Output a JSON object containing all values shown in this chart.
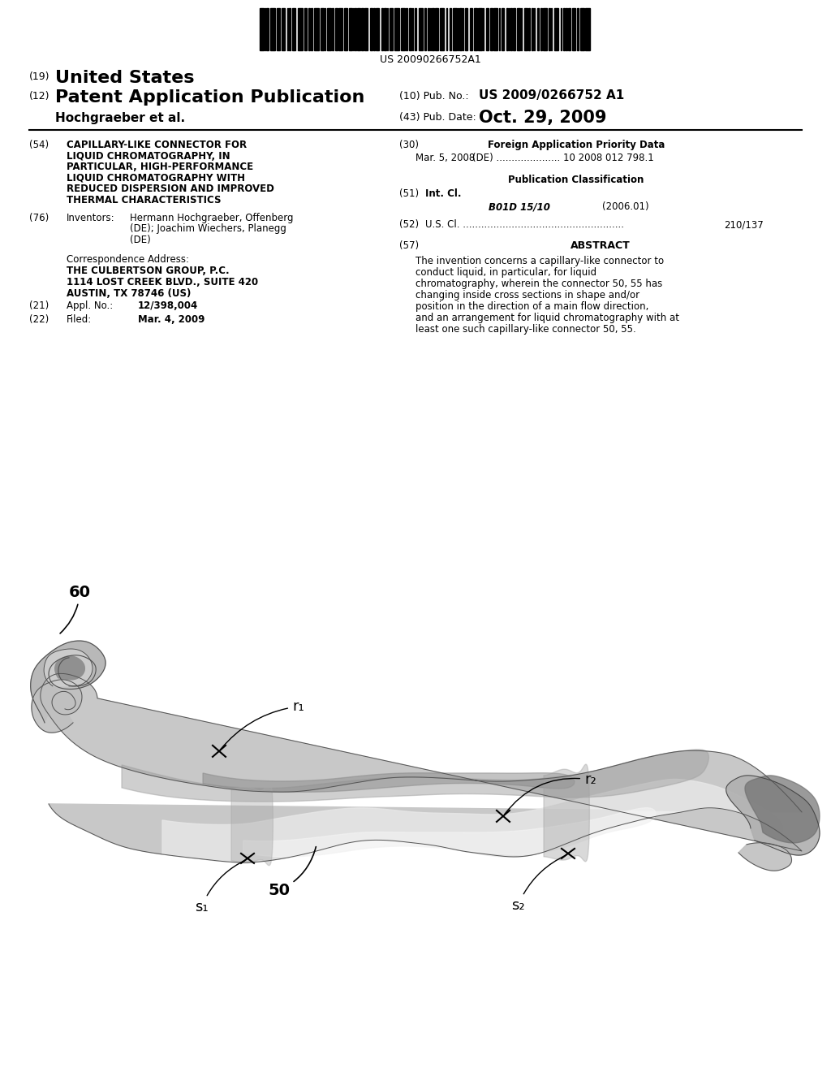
{
  "background_color": "#ffffff",
  "barcode_text": "US 20090266752A1",
  "header": {
    "country_num": "(19)",
    "country": "United States",
    "type_num": "(12)",
    "type": "Patent Application Publication",
    "authors": "Hochgraeber et al.",
    "pub_num_label": "(10) Pub. No.:",
    "pub_num": "US 2009/0266752 A1",
    "date_label": "(43) Pub. Date:",
    "date": "Oct. 29, 2009"
  },
  "left_col": {
    "title_num": "(54)",
    "title_lines": [
      "CAPILLARY-LIKE CONNECTOR FOR",
      "LIQUID CHROMATOGRAPHY, IN",
      "PARTICULAR, HIGH-PERFORMANCE",
      "LIQUID CHROMATOGRAPHY WITH",
      "REDUCED DISPERSION AND IMPROVED",
      "THERMAL CHARACTERISTICS"
    ],
    "inventors_num": "(76)",
    "inventors_label": "Inventors:",
    "inventors_text": "Hermann Hochgraeber, Offenberg\n(DE); Joachim Wiechers, Planegg\n(DE)",
    "corr_label": "Correspondence Address:",
    "corr_line1": "THE CULBERTSON GROUP, P.C.",
    "corr_line2": "1114 LOST CREEK BLVD., SUITE 420",
    "corr_line3": "AUSTIN, TX 78746 (US)",
    "appl_num": "(21)",
    "appl_label": "Appl. No.:",
    "appl_val": "12/398,004",
    "filed_num": "(22)",
    "filed_label": "Filed:",
    "filed_val": "Mar. 4, 2009"
  },
  "right_col": {
    "foreign_num": "(30)",
    "foreign_title": "Foreign Application Priority Data",
    "foreign_entry1": "Mar. 5, 2008",
    "foreign_entry2": "(DE) ..................... 10 2008 012 798.1",
    "pub_class_title": "Publication Classification",
    "int_cl_num": "(51)",
    "int_cl_label": "Int. Cl.",
    "int_cl_val": "B01D 15/10",
    "int_cl_year": "(2006.01)",
    "us_cl_num": "(52)",
    "us_cl_label": "U.S. Cl. .....................................................",
    "us_cl_val": "210/137",
    "abstract_num": "(57)",
    "abstract_title": "ABSTRACT",
    "abstract_text": "The invention concerns a capillary-like connector to conduct liquid, in particular, for liquid chromatography, wherein the connector 50, 55 has changing inside cross sections in shape and/or position in the direction of a main flow direction, and an arrangement for liquid chromatography with at least one such capillary-like connector 50, 55."
  }
}
